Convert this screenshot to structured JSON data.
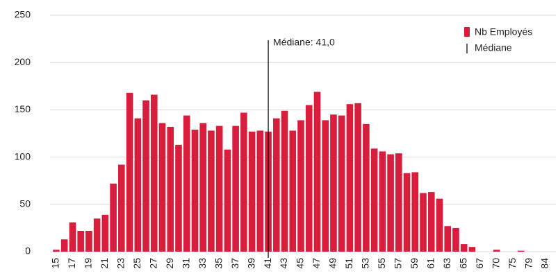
{
  "chart_data": {
    "type": "bar",
    "categories": [
      "15",
      null,
      "17",
      null,
      "19",
      null,
      "21",
      null,
      "23",
      null,
      "25",
      null,
      "27",
      null,
      "29",
      null,
      "31",
      null,
      "33",
      null,
      "35",
      null,
      "37",
      null,
      "39",
      null,
      "41",
      null,
      "43",
      null,
      "45",
      null,
      "47",
      null,
      "49",
      null,
      "51",
      null,
      "53",
      null,
      "55",
      null,
      "57",
      null,
      "59",
      null,
      "61",
      null,
      "63",
      null,
      "65",
      null,
      "67",
      null,
      "70",
      null,
      "75",
      null,
      "79",
      null,
      "84"
    ],
    "series": [
      {
        "name": "Nb Employés",
        "color": "#d81e3c",
        "values": [
          2,
          13,
          31,
          22,
          22,
          35,
          39,
          72,
          92,
          168,
          141,
          160,
          166,
          136,
          132,
          113,
          144,
          129,
          136,
          128,
          133,
          108,
          133,
          147,
          127,
          128,
          127,
          141,
          149,
          128,
          139,
          155,
          169,
          139,
          145,
          144,
          156,
          157,
          135,
          109,
          106,
          103,
          104,
          83,
          84,
          62,
          63,
          56,
          27,
          25,
          8,
          5,
          0,
          0,
          2,
          0,
          0,
          1,
          0,
          0,
          0
        ]
      }
    ],
    "median": {
      "name": "Médiane",
      "category": "41",
      "label": "Médiane: 41,0",
      "color": "#111111"
    },
    "ylim": [
      0,
      250
    ],
    "yticks": [
      0,
      50,
      100,
      150,
      200,
      250
    ],
    "grid": true,
    "legend": "top-right"
  }
}
